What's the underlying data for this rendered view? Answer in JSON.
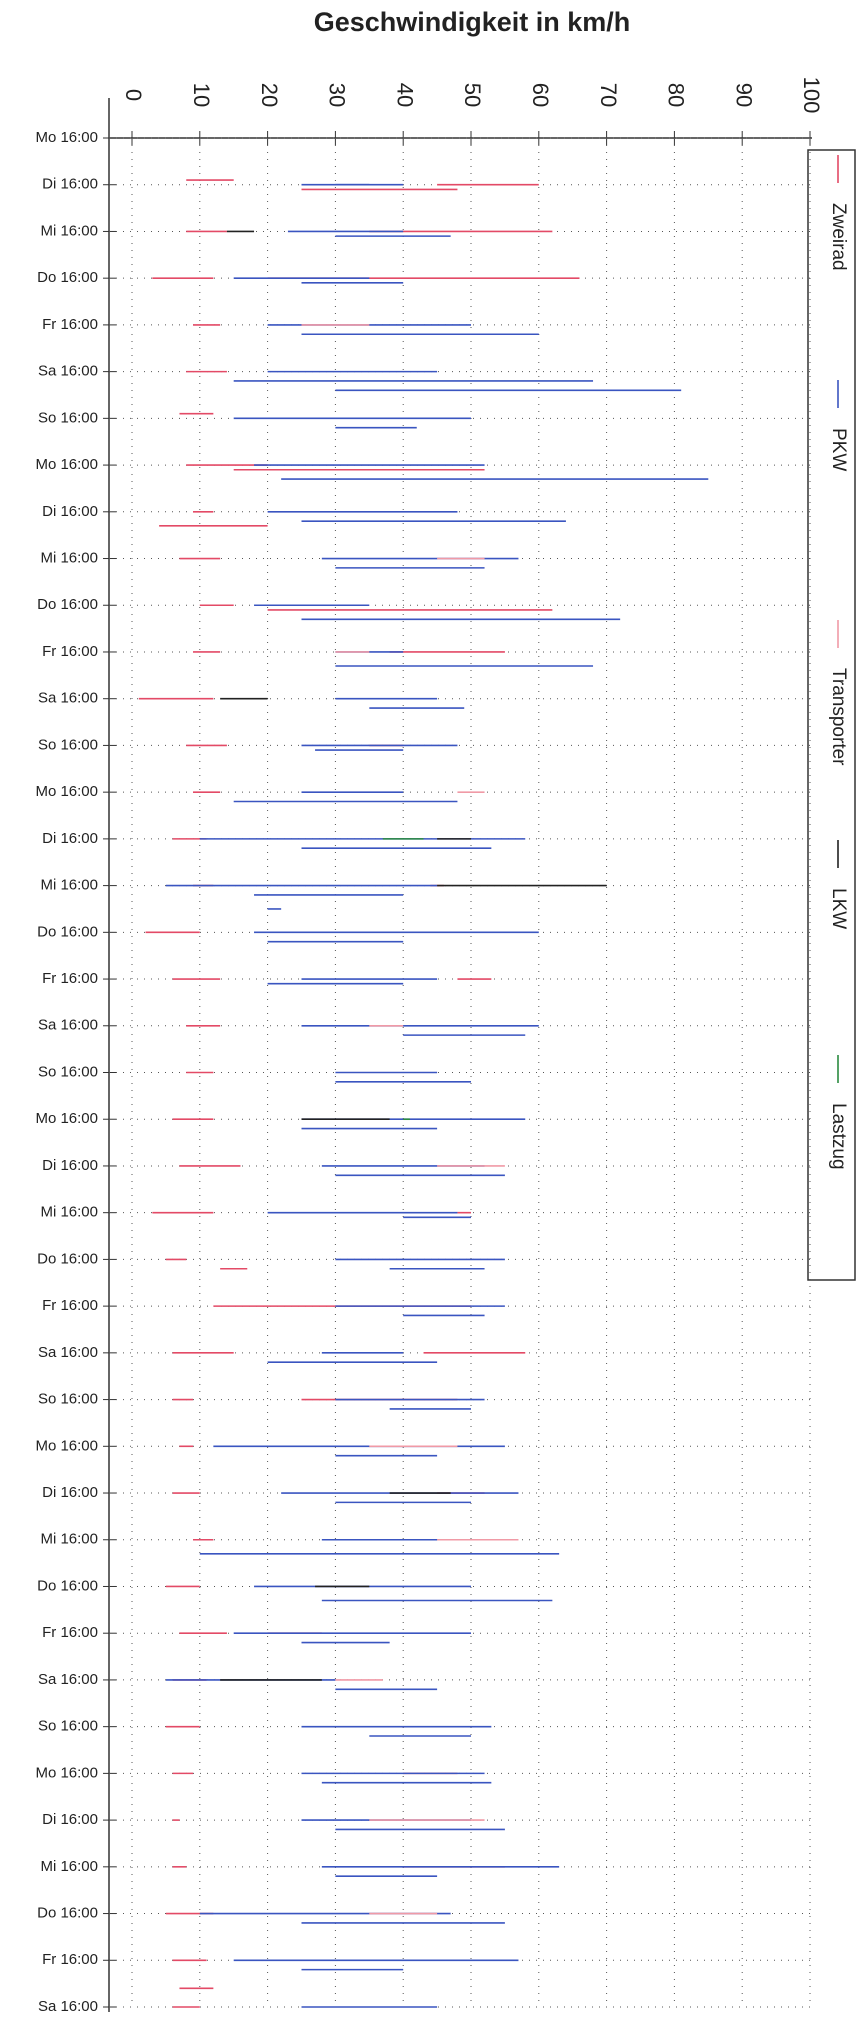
{
  "chart_data": {
    "type": "segments",
    "title": "Geschwindigkeit in  km/h",
    "xlim": [
      0,
      100
    ],
    "xticks": [
      0,
      10,
      20,
      30,
      40,
      50,
      60,
      70,
      80,
      90,
      100
    ],
    "ylim": [
      0,
      40
    ],
    "yticks": [
      {
        "value": 0,
        "label": "Mo 16:00"
      },
      {
        "value": 1,
        "label": "Di 16:00"
      },
      {
        "value": 2,
        "label": "Mi 16:00"
      },
      {
        "value": 3,
        "label": "Do 16:00"
      },
      {
        "value": 4,
        "label": "Fr 16:00"
      },
      {
        "value": 5,
        "label": "Sa 16:00"
      },
      {
        "value": 6,
        "label": "So 16:00"
      },
      {
        "value": 7,
        "label": "Mo 16:00"
      },
      {
        "value": 8,
        "label": "Di 16:00"
      },
      {
        "value": 9,
        "label": "Mi 16:00"
      },
      {
        "value": 10,
        "label": "Do 16:00"
      },
      {
        "value": 11,
        "label": "Fr 16:00"
      },
      {
        "value": 12,
        "label": "Sa 16:00"
      },
      {
        "value": 13,
        "label": "So 16:00"
      },
      {
        "value": 14,
        "label": "Mo 16:00"
      },
      {
        "value": 15,
        "label": "Di 16:00"
      },
      {
        "value": 16,
        "label": "Mi 16:00"
      },
      {
        "value": 17,
        "label": "Do 16:00"
      },
      {
        "value": 18,
        "label": "Fr 16:00"
      },
      {
        "value": 19,
        "label": "Sa 16:00"
      },
      {
        "value": 20,
        "label": "So 16:00"
      },
      {
        "value": 21,
        "label": "Mo 16:00"
      },
      {
        "value": 22,
        "label": "Di 16:00"
      },
      {
        "value": 23,
        "label": "Mi 16:00"
      },
      {
        "value": 24,
        "label": "Do 16:00"
      },
      {
        "value": 25,
        "label": "Fr 16:00"
      },
      {
        "value": 26,
        "label": "Sa 16:00"
      },
      {
        "value": 27,
        "label": "So 16:00"
      },
      {
        "value": 28,
        "label": "Mo 16:00"
      },
      {
        "value": 29,
        "label": "Di 16:00"
      },
      {
        "value": 30,
        "label": "Mi 16:00"
      },
      {
        "value": 31,
        "label": "Do 16:00"
      },
      {
        "value": 32,
        "label": "Fr 16:00"
      },
      {
        "value": 33,
        "label": "Sa 16:00"
      },
      {
        "value": 34,
        "label": "So 16:00"
      },
      {
        "value": 35,
        "label": "Mo 16:00"
      },
      {
        "value": 36,
        "label": "Di 16:00"
      },
      {
        "value": 37,
        "label": "Mi 16:00"
      },
      {
        "value": 38,
        "label": "Do 16:00"
      },
      {
        "value": 39,
        "label": "Fr 16:00"
      },
      {
        "value": 40,
        "label": "Sa 16:00"
      }
    ],
    "grid": true,
    "series": [
      {
        "name": "Zweirad",
        "color": "#e34a66",
        "segments": [
          [
            0.9,
            8,
            15
          ],
          [
            1.1,
            25,
            48
          ],
          [
            1.0,
            45,
            60
          ],
          [
            2.0,
            8,
            14
          ],
          [
            2.0,
            35,
            62
          ],
          [
            3.0,
            3,
            12
          ],
          [
            3.0,
            20,
            66
          ],
          [
            4.0,
            9,
            13
          ],
          [
            5.0,
            8,
            14
          ],
          [
            5.9,
            7,
            12
          ],
          [
            7.0,
            8,
            20
          ],
          [
            7.1,
            15,
            52
          ],
          [
            8.0,
            9,
            12
          ],
          [
            8.3,
            4,
            20
          ],
          [
            9.0,
            7,
            13
          ],
          [
            10.0,
            10,
            15
          ],
          [
            10.1,
            20,
            62
          ],
          [
            11.0,
            9,
            13
          ],
          [
            11.0,
            38,
            55
          ],
          [
            12.0,
            1,
            12
          ],
          [
            13.0,
            8,
            14
          ],
          [
            13.0,
            35,
            40
          ],
          [
            14.0,
            9,
            13
          ],
          [
            15.0,
            6,
            11
          ],
          [
            16.0,
            9,
            12
          ],
          [
            16.0,
            44,
            46
          ],
          [
            17.0,
            2,
            10
          ],
          [
            18.0,
            6,
            13
          ],
          [
            18.0,
            48,
            53
          ],
          [
            19.0,
            8,
            13
          ],
          [
            20.0,
            8,
            12
          ],
          [
            21.0,
            6,
            12
          ],
          [
            22.0,
            7,
            16
          ],
          [
            23.0,
            3,
            12
          ],
          [
            23.0,
            48,
            50
          ],
          [
            24.0,
            5,
            8
          ],
          [
            24.2,
            13,
            17
          ],
          [
            25.0,
            12,
            50
          ],
          [
            26.0,
            6,
            15
          ],
          [
            26.0,
            43,
            58
          ],
          [
            27.0,
            6,
            9
          ],
          [
            27.0,
            25,
            48
          ],
          [
            28.0,
            7,
            9
          ],
          [
            29.0,
            6,
            10
          ],
          [
            29.0,
            45,
            52
          ],
          [
            30.0,
            9,
            12
          ],
          [
            31.0,
            5,
            10
          ],
          [
            32.0,
            7,
            14
          ],
          [
            32.0,
            20,
            28
          ],
          [
            33.0,
            6,
            11
          ],
          [
            34.0,
            5,
            10
          ],
          [
            35.0,
            6,
            9
          ],
          [
            35.0,
            40,
            48
          ],
          [
            36.0,
            6,
            7
          ],
          [
            37.0,
            6,
            8
          ],
          [
            37.0,
            40,
            55
          ],
          [
            38.0,
            5,
            12
          ],
          [
            39.0,
            6,
            11
          ],
          [
            39.6,
            7,
            12
          ],
          [
            40.0,
            6,
            10
          ]
        ]
      },
      {
        "name": "PKW",
        "color": "#3a55c0",
        "segments": [
          [
            1.0,
            25,
            35
          ],
          [
            1.0,
            30,
            40
          ],
          [
            2.0,
            23,
            40
          ],
          [
            2.1,
            30,
            47
          ],
          [
            3.0,
            15,
            35
          ],
          [
            3.1,
            25,
            40
          ],
          [
            4.0,
            20,
            50
          ],
          [
            4.2,
            25,
            60
          ],
          [
            5.0,
            20,
            45
          ],
          [
            5.2,
            15,
            68
          ],
          [
            5.4,
            30,
            81
          ],
          [
            6.0,
            15,
            50
          ],
          [
            6.2,
            30,
            42
          ],
          [
            7.0,
            18,
            52
          ],
          [
            7.3,
            22,
            85
          ],
          [
            8.0,
            20,
            48
          ],
          [
            8.2,
            25,
            64
          ],
          [
            9.0,
            28,
            57
          ],
          [
            9.2,
            30,
            52
          ],
          [
            10.0,
            18,
            35
          ],
          [
            10.3,
            25,
            72
          ],
          [
            11.0,
            30,
            40
          ],
          [
            11.3,
            30,
            68
          ],
          [
            12.0,
            30,
            45
          ],
          [
            12.2,
            35,
            49
          ],
          [
            13.0,
            25,
            48
          ],
          [
            13.1,
            27,
            40
          ],
          [
            14.0,
            25,
            40
          ],
          [
            14.2,
            15,
            48
          ],
          [
            15.0,
            10,
            58
          ],
          [
            15.2,
            25,
            53
          ],
          [
            16.0,
            5,
            45
          ],
          [
            16.2,
            18,
            40
          ],
          [
            16.5,
            20,
            22
          ],
          [
            17.0,
            18,
            60
          ],
          [
            17.2,
            20,
            40
          ],
          [
            18.0,
            25,
            45
          ],
          [
            18.1,
            20,
            40
          ],
          [
            19.0,
            25,
            60
          ],
          [
            19.2,
            40,
            58
          ],
          [
            20.0,
            30,
            45
          ],
          [
            20.2,
            30,
            50
          ],
          [
            21.0,
            25,
            58
          ],
          [
            21.2,
            25,
            45
          ],
          [
            22.0,
            28,
            52
          ],
          [
            22.2,
            30,
            55
          ],
          [
            23.0,
            20,
            48
          ],
          [
            23.1,
            40,
            50
          ],
          [
            24.0,
            30,
            55
          ],
          [
            24.2,
            38,
            52
          ],
          [
            25.0,
            30,
            55
          ],
          [
            25.2,
            40,
            52
          ],
          [
            26.0,
            28,
            40
          ],
          [
            26.2,
            20,
            45
          ],
          [
            27.0,
            30,
            52
          ],
          [
            27.2,
            38,
            50
          ],
          [
            28.0,
            12,
            55
          ],
          [
            28.2,
            30,
            45
          ],
          [
            29.0,
            22,
            57
          ],
          [
            29.2,
            30,
            50
          ],
          [
            30.0,
            28,
            50
          ],
          [
            30.3,
            10,
            63
          ],
          [
            31.0,
            18,
            50
          ],
          [
            31.3,
            28,
            62
          ],
          [
            32.0,
            15,
            50
          ],
          [
            32.2,
            25,
            38
          ],
          [
            33.0,
            5,
            30
          ],
          [
            33.2,
            30,
            45
          ],
          [
            34.0,
            25,
            53
          ],
          [
            34.2,
            35,
            50
          ],
          [
            35.0,
            25,
            52
          ],
          [
            35.2,
            28,
            53
          ],
          [
            36.0,
            25,
            50
          ],
          [
            36.2,
            30,
            55
          ],
          [
            37.0,
            28,
            63
          ],
          [
            37.2,
            30,
            45
          ],
          [
            38.0,
            10,
            47
          ],
          [
            38.2,
            25,
            55
          ],
          [
            39.0,
            15,
            57
          ],
          [
            39.2,
            25,
            40
          ],
          [
            40.0,
            25,
            45
          ]
        ]
      },
      {
        "name": "Transporter",
        "color": "#f09aa6",
        "segments": [
          [
            4.0,
            25,
            35
          ],
          [
            9.0,
            45,
            52
          ],
          [
            11.0,
            30,
            35
          ],
          [
            14.0,
            48,
            52
          ],
          [
            19.0,
            35,
            40
          ],
          [
            22.0,
            45,
            55
          ],
          [
            28.0,
            35,
            48
          ],
          [
            30.0,
            45,
            57
          ],
          [
            33.0,
            30,
            37
          ],
          [
            36.0,
            35,
            52
          ],
          [
            38.0,
            35,
            45
          ]
        ]
      },
      {
        "name": "LKW",
        "color": "#222222",
        "segments": [
          [
            2.0,
            14,
            18
          ],
          [
            12.0,
            13,
            20
          ],
          [
            15.0,
            45,
            50
          ],
          [
            16.0,
            45,
            70
          ],
          [
            21.0,
            25,
            38
          ],
          [
            29.0,
            38,
            47
          ],
          [
            31.0,
            27,
            35
          ],
          [
            33.0,
            13,
            28
          ]
        ]
      },
      {
        "name": "Lastzug",
        "color": "#2a8a40",
        "segments": [
          [
            15.0,
            37,
            43
          ],
          [
            21.0,
            40,
            41
          ]
        ]
      }
    ]
  }
}
